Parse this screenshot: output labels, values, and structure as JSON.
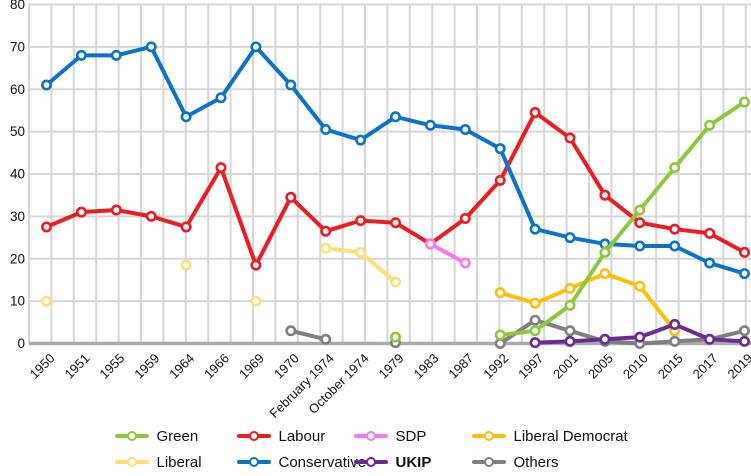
{
  "chart_data": {
    "type": "line",
    "title": "",
    "xlabel": "",
    "ylabel": "",
    "ylim": [
      0,
      80
    ],
    "ytick_step": 10,
    "yticks": [
      0,
      10,
      20,
      30,
      40,
      50,
      60,
      70,
      80
    ],
    "grid": true,
    "legend_position": "bottom",
    "categories": [
      "1950",
      "1951",
      "1955",
      "1959",
      "1964",
      "1966",
      "1969",
      "1970",
      "February 1974",
      "October 1974",
      "1979",
      "1983",
      "1987",
      "1992",
      "1997",
      "2001",
      "2005",
      "2010",
      "2015",
      "2017",
      "2019"
    ],
    "series": [
      {
        "name": "Green",
        "color": "#8ec63f",
        "bold": false,
        "values": [
          null,
          null,
          null,
          null,
          null,
          null,
          null,
          null,
          null,
          null,
          1.5,
          null,
          null,
          2,
          3,
          9,
          21.5,
          31.5,
          41.5,
          51.5,
          57
        ]
      },
      {
        "name": "Labour",
        "color": "#ed1b23",
        "bold": false,
        "values": [
          27.5,
          31,
          31.5,
          30,
          27.5,
          41.5,
          18.5,
          34.5,
          26.5,
          29,
          28.5,
          23.5,
          29.5,
          38.5,
          54.5,
          48.5,
          35,
          28.5,
          27,
          26,
          21.5
        ]
      },
      {
        "name": "SDP",
        "color": "#f57ce8",
        "bold": false,
        "values": [
          null,
          null,
          null,
          null,
          null,
          null,
          null,
          null,
          null,
          null,
          null,
          23.5,
          19,
          null,
          null,
          null,
          null,
          null,
          null,
          null,
          null
        ]
      },
      {
        "name": "Liberal Democrat",
        "color": "#fdbf0e",
        "bold": false,
        "values": [
          null,
          null,
          null,
          null,
          null,
          null,
          null,
          null,
          null,
          null,
          null,
          null,
          null,
          12,
          9.5,
          13,
          16.5,
          13.5,
          3,
          null,
          null
        ]
      },
      {
        "name": "Liberal",
        "color": "#fddf7c",
        "bold": false,
        "values": [
          10,
          null,
          null,
          null,
          18.5,
          null,
          10,
          null,
          22.5,
          21.5,
          14.5,
          null,
          null,
          null,
          null,
          null,
          null,
          null,
          null,
          null,
          null
        ]
      },
      {
        "name": "Conservative",
        "color": "#0d72c6",
        "bold": false,
        "values": [
          61,
          68,
          68,
          70,
          53.5,
          58,
          70,
          61,
          50.5,
          48,
          53.5,
          51.5,
          50.5,
          46,
          27,
          25,
          23.5,
          23,
          23,
          19,
          16.5
        ]
      },
      {
        "name": "UKIP",
        "color": "#6a2c91",
        "bold": true,
        "values": [
          null,
          null,
          null,
          null,
          null,
          null,
          null,
          null,
          null,
          null,
          null,
          null,
          null,
          null,
          0.2,
          0.5,
          1,
          1.5,
          4.5,
          1,
          0.5
        ]
      },
      {
        "name": "Others",
        "color": "#7f7f7f",
        "bold": false,
        "values": [
          null,
          null,
          null,
          null,
          null,
          null,
          null,
          3,
          1,
          null,
          0.2,
          null,
          null,
          0,
          5.5,
          3,
          0.5,
          0,
          0.5,
          1,
          3
        ]
      }
    ],
    "draw_order": [
      "Liberal",
      "Liberal Democrat",
      "Others",
      "Labour",
      "SDP",
      "Conservative",
      "Green",
      "UKIP"
    ]
  },
  "legend": {
    "rows": [
      [
        "Green",
        "Labour",
        "SDP",
        "Liberal Democrat"
      ],
      [
        "Liberal",
        "Conservative",
        "UKIP",
        "Others"
      ]
    ]
  },
  "style": {
    "gridline_color": "#d6d6d6",
    "axis_color": "#ababab",
    "tick_label_color": "#101010",
    "background": "#ffffff"
  }
}
